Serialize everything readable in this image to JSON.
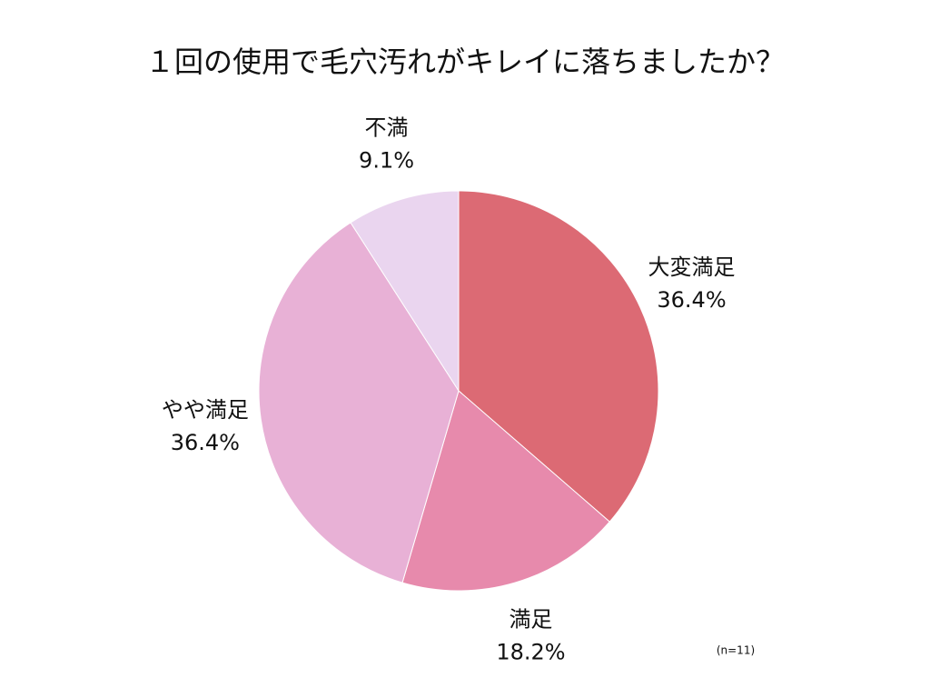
{
  "chart_data": {
    "type": "pie",
    "title": "１回の使用で毛穴汚れがキレイに落ちましたか？",
    "categories": [
      "大変満足",
      "満足",
      "やや満足",
      "不満"
    ],
    "values": [
      36.4,
      18.2,
      36.4,
      9.1
    ],
    "value_labels": [
      "36.4%",
      "18.2%",
      "36.4%",
      "9.1%"
    ],
    "colors": [
      "#dc6a74",
      "#e78aac",
      "#e8b1d6",
      "#ead5ef"
    ],
    "annotation": "(n=11)"
  }
}
